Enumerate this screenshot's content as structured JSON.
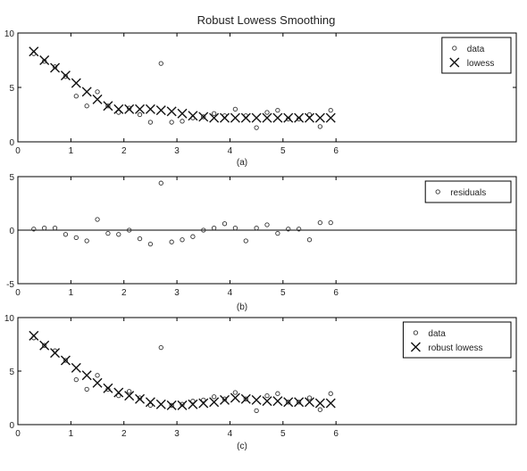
{
  "title": "Robust Lowess Smoothing",
  "chart_data": [
    {
      "type": "scatter",
      "sublabel": "(a)",
      "xlim": [
        0,
        9.4
      ],
      "ylim": [
        0,
        10
      ],
      "xticks": [
        0,
        1,
        2,
        3,
        4,
        5,
        6
      ],
      "yticks": [
        0,
        5,
        10
      ],
      "grid": false,
      "legend_position": "top-right",
      "series": [
        {
          "name": "data",
          "marker": "circle",
          "x": [
            0.3,
            0.5,
            0.7,
            0.9,
            1.1,
            1.3,
            1.5,
            1.7,
            1.9,
            2.1,
            2.3,
            2.5,
            2.7,
            2.9,
            3.1,
            3.3,
            3.5,
            3.7,
            3.9,
            4.1,
            4.3,
            4.5,
            4.7,
            4.9,
            5.1,
            5.3,
            5.5,
            5.7,
            5.9
          ],
          "y": [
            8.1,
            7.4,
            6.9,
            6.0,
            4.2,
            3.3,
            4.6,
            3.3,
            2.7,
            3.1,
            2.5,
            1.8,
            7.2,
            1.8,
            1.9,
            2.2,
            2.3,
            2.6,
            2.4,
            3.0,
            2.4,
            1.3,
            2.7,
            2.9,
            2.1,
            2.1,
            2.5,
            1.4,
            2.9
          ]
        },
        {
          "name": "lowess",
          "marker": "x",
          "x": [
            0.3,
            0.5,
            0.7,
            0.9,
            1.1,
            1.3,
            1.5,
            1.7,
            1.9,
            2.1,
            2.3,
            2.5,
            2.7,
            2.9,
            3.1,
            3.3,
            3.5,
            3.7,
            3.9,
            4.1,
            4.3,
            4.5,
            4.7,
            4.9,
            5.1,
            5.3,
            5.5,
            5.7,
            5.9
          ],
          "y": [
            8.3,
            7.5,
            6.8,
            6.1,
            5.4,
            4.6,
            3.9,
            3.3,
            3.0,
            3.0,
            3.0,
            3.0,
            2.9,
            2.8,
            2.6,
            2.4,
            2.3,
            2.2,
            2.2,
            2.2,
            2.2,
            2.2,
            2.2,
            2.2,
            2.2,
            2.2,
            2.2,
            2.2,
            2.2
          ]
        }
      ]
    },
    {
      "type": "scatter",
      "sublabel": "(b)",
      "xlim": [
        0,
        9.4
      ],
      "ylim": [
        -5,
        5
      ],
      "xticks": [
        0,
        1,
        2,
        3,
        4,
        5,
        6
      ],
      "yticks": [
        -5,
        0,
        5
      ],
      "grid": false,
      "zero_line": true,
      "legend_position": "top-right",
      "series": [
        {
          "name": "residuals",
          "marker": "circle",
          "x": [
            0.3,
            0.5,
            0.7,
            0.9,
            1.1,
            1.3,
            1.5,
            1.7,
            1.9,
            2.1,
            2.3,
            2.5,
            2.7,
            2.9,
            3.1,
            3.3,
            3.5,
            3.7,
            3.9,
            4.1,
            4.3,
            4.5,
            4.7,
            4.9,
            5.1,
            5.3,
            5.5,
            5.7,
            5.9
          ],
          "y": [
            0.1,
            0.2,
            0.2,
            -0.4,
            -0.7,
            -1.0,
            1.0,
            -0.3,
            -0.4,
            0.0,
            -0.8,
            -1.3,
            4.4,
            -1.1,
            -0.9,
            -0.6,
            0.0,
            0.2,
            0.6,
            0.2,
            -1.0,
            0.2,
            0.5,
            -0.3,
            0.1,
            0.1,
            -0.9,
            0.7,
            0.7
          ]
        }
      ]
    },
    {
      "type": "scatter",
      "sublabel": "(c)",
      "xlim": [
        0,
        9.4
      ],
      "ylim": [
        0,
        10
      ],
      "xticks": [
        0,
        1,
        2,
        3,
        4,
        5,
        6
      ],
      "yticks": [
        0,
        5,
        10
      ],
      "grid": false,
      "legend_position": "top-right",
      "series": [
        {
          "name": "data",
          "marker": "circle",
          "x": [
            0.3,
            0.5,
            0.7,
            0.9,
            1.1,
            1.3,
            1.5,
            1.7,
            1.9,
            2.1,
            2.3,
            2.5,
            2.7,
            2.9,
            3.1,
            3.3,
            3.5,
            3.7,
            3.9,
            4.1,
            4.3,
            4.5,
            4.7,
            4.9,
            5.1,
            5.3,
            5.5,
            5.7,
            5.9
          ],
          "y": [
            8.1,
            7.4,
            6.9,
            6.0,
            4.2,
            3.3,
            4.6,
            3.3,
            2.7,
            3.1,
            2.5,
            1.8,
            7.2,
            1.8,
            1.9,
            2.2,
            2.3,
            2.6,
            2.4,
            3.0,
            2.4,
            1.3,
            2.7,
            2.9,
            2.1,
            2.1,
            2.5,
            1.4,
            2.9
          ]
        },
        {
          "name": "robust lowess",
          "marker": "x",
          "x": [
            0.3,
            0.5,
            0.7,
            0.9,
            1.1,
            1.3,
            1.5,
            1.7,
            1.9,
            2.1,
            2.3,
            2.5,
            2.7,
            2.9,
            3.1,
            3.3,
            3.5,
            3.7,
            3.9,
            4.1,
            4.3,
            4.5,
            4.7,
            4.9,
            5.1,
            5.3,
            5.5,
            5.7,
            5.9
          ],
          "y": [
            8.3,
            7.4,
            6.7,
            6.0,
            5.3,
            4.6,
            3.9,
            3.4,
            3.0,
            2.7,
            2.4,
            2.1,
            1.9,
            1.8,
            1.8,
            1.9,
            2.0,
            2.1,
            2.3,
            2.5,
            2.4,
            2.3,
            2.2,
            2.2,
            2.1,
            2.1,
            2.1,
            2.0,
            2.0
          ]
        }
      ]
    }
  ]
}
